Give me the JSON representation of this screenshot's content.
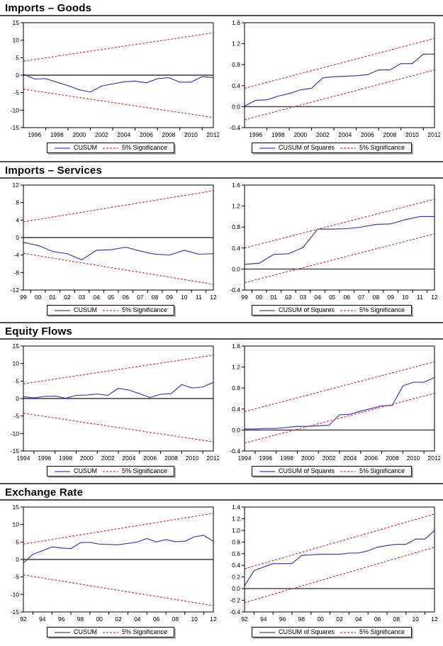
{
  "page": {
    "background": "#ffffff",
    "rule_color": "#4f4f4f",
    "cusum_color": "#3c3cc8",
    "significance_color": "#e53535"
  },
  "sections": [
    {
      "title": "Imports – Goods"
    },
    {
      "title": "Imports – Services"
    },
    {
      "title": "Equity Flows"
    },
    {
      "title": "Exchange Rate"
    }
  ],
  "chart_data": [
    {
      "type": "line",
      "group": "Imports – Goods",
      "panel": "left",
      "xlim": [
        1995,
        2012
      ],
      "ylim": [
        -15,
        15
      ],
      "y_tick_values": [
        -15,
        -10,
        -5,
        0,
        5,
        10,
        15
      ],
      "y_tick_labels": [
        "-15",
        "-10",
        "-5",
        "0",
        "5",
        "10",
        "15"
      ],
      "x_tick_values": [
        1996,
        1998,
        2000,
        2002,
        2004,
        2006,
        2008,
        2010,
        2012
      ],
      "x_tick_labels": [
        "1996",
        "1998",
        "2000",
        "2002",
        "2004",
        "2006",
        "2008",
        "2010",
        "2012"
      ],
      "series": [
        {
          "key": "cusum-line",
          "name": "CUSUM",
          "color": "#3c3cc8",
          "style": "solid",
          "values": [
            0.3,
            -1.1,
            -1.0,
            -2.0,
            -3.0,
            -4.2,
            -4.8,
            -3.1,
            -2.5,
            -1.9,
            -1.7,
            -2.2,
            -1.0,
            -0.7,
            -2.0,
            -2.0,
            -0.4,
            -0.7
          ]
        },
        {
          "key": "significance-upper-line",
          "name": "5% Significance (upper)",
          "color": "#e53535",
          "style": "dashed",
          "values": [
            4.0,
            12.1
          ]
        },
        {
          "key": "significance-lower-line",
          "name": "5% Significance (lower)",
          "color": "#e53535",
          "style": "dashed",
          "values": [
            -4.0,
            -12.1
          ]
        }
      ],
      "legend": [
        {
          "label": "CUSUM",
          "color": "#3c3cc8",
          "style": "solid"
        },
        {
          "label": "5% Significance",
          "color": "#e53535",
          "style": "dashed"
        }
      ]
    },
    {
      "type": "line",
      "group": "Imports – Goods",
      "panel": "right",
      "xlim": [
        1995,
        2012
      ],
      "ylim": [
        -0.4,
        1.6
      ],
      "y_tick_values": [
        -0.4,
        0.0,
        0.4,
        0.8,
        1.2,
        1.6
      ],
      "y_tick_labels": [
        "-0.4",
        "0.0",
        "0.4",
        "0.8",
        "1.2",
        "1.6"
      ],
      "x_tick_values": [
        1996,
        1998,
        2000,
        2002,
        2004,
        2006,
        2008,
        2010,
        2012
      ],
      "x_tick_labels": [
        "1996",
        "1998",
        "2000",
        "2002",
        "2004",
        "2006",
        "2008",
        "2010",
        "2012"
      ],
      "series": [
        {
          "key": "cusum-of-squares-line",
          "name": "CUSUM of Squares",
          "color": "#3c3cc8",
          "style": "solid",
          "values": [
            0.01,
            0.12,
            0.13,
            0.2,
            0.25,
            0.32,
            0.35,
            0.55,
            0.57,
            0.58,
            0.59,
            0.61,
            0.7,
            0.7,
            0.82,
            0.82,
            1.0,
            1.0
          ]
        },
        {
          "key": "significance-upper-line",
          "name": "5% Significance (upper)",
          "color": "#e53535",
          "style": "dashed",
          "values": [
            0.35,
            1.3
          ]
        },
        {
          "key": "significance-lower-line",
          "name": "5% Significance (lower)",
          "color": "#e53535",
          "style": "dashed",
          "values": [
            -0.25,
            0.7
          ]
        }
      ],
      "legend": [
        {
          "label": "CUSUM of Squares",
          "color": "#3c3cc8",
          "style": "solid"
        },
        {
          "label": "5% Significance",
          "color": "#e53535",
          "style": "dashed"
        }
      ]
    },
    {
      "type": "line",
      "group": "Imports – Services",
      "panel": "left",
      "xlim": [
        1999,
        2012
      ],
      "ylim": [
        -12,
        12
      ],
      "y_tick_values": [
        -12,
        -8,
        -4,
        0,
        4,
        8,
        12
      ],
      "y_tick_labels": [
        "-12",
        "-8",
        "-4",
        "0",
        "4",
        "8",
        "12"
      ],
      "x_tick_values": [
        1999,
        2000,
        2001,
        2002,
        2003,
        2004,
        2005,
        2006,
        2007,
        2008,
        2009,
        2010,
        2011,
        2012
      ],
      "x_tick_labels": [
        "99",
        "00",
        "01",
        "02",
        "03",
        "04",
        "05",
        "06",
        "07",
        "08",
        "09",
        "10",
        "11",
        "12"
      ],
      "series": [
        {
          "key": "cusum-line",
          "name": "CUSUM",
          "color": "#3c3cc8",
          "style": "solid",
          "values": [
            -1.1,
            -1.8,
            -3.2,
            -3.7,
            -5.1,
            -2.9,
            -2.8,
            -2.2,
            -3.1,
            -3.8,
            -4.0,
            -2.9,
            -3.8,
            -3.7
          ]
        },
        {
          "key": "significance-upper-line",
          "name": "5% Significance (upper)",
          "color": "#e53535",
          "style": "dashed",
          "values": [
            3.6,
            10.7
          ]
        },
        {
          "key": "significance-lower-line",
          "name": "5% Significance (lower)",
          "color": "#e53535",
          "style": "dashed",
          "values": [
            -3.6,
            -10.7
          ]
        }
      ],
      "legend": [
        {
          "label": "CUSUM",
          "color": "#3c3cc8",
          "style": "solid"
        },
        {
          "label": "5% Significance",
          "color": "#e53535",
          "style": "dashed"
        }
      ]
    },
    {
      "type": "line",
      "group": "Imports – Services",
      "panel": "right",
      "xlim": [
        1999,
        2012
      ],
      "ylim": [
        -0.4,
        1.6
      ],
      "y_tick_values": [
        -0.4,
        0.0,
        0.4,
        0.8,
        1.2,
        1.6
      ],
      "y_tick_labels": [
        "-0.4",
        "0.0",
        "0.4",
        "0.8",
        "1.2",
        "1.6"
      ],
      "x_tick_values": [
        1999,
        2000,
        2001,
        2002,
        2003,
        2004,
        2005,
        2006,
        2007,
        2008,
        2009,
        2010,
        2011,
        2012
      ],
      "x_tick_labels": [
        "99",
        "00",
        "01",
        "02",
        "03",
        "04",
        "05",
        "06",
        "07",
        "08",
        "09",
        "10",
        "11",
        "12"
      ],
      "series": [
        {
          "key": "cusum-of-squares-line",
          "name": "CUSUM of Squares",
          "color": "#3c3cc8",
          "style": "solid",
          "values": [
            0.09,
            0.11,
            0.28,
            0.29,
            0.41,
            0.76,
            0.76,
            0.77,
            0.8,
            0.85,
            0.86,
            0.94,
            1.0,
            1.0
          ]
        },
        {
          "key": "significance-upper-line",
          "name": "5% Significance (upper)",
          "color": "#e53535",
          "style": "dashed",
          "values": [
            0.4,
            1.33
          ]
        },
        {
          "key": "significance-lower-line",
          "name": "5% Significance (lower)",
          "color": "#e53535",
          "style": "dashed",
          "values": [
            -0.26,
            0.67
          ]
        }
      ],
      "legend": [
        {
          "label": "CUSUM of Squares",
          "color": "#3c3cc8",
          "style": "solid"
        },
        {
          "label": "5% Significance",
          "color": "#e53535",
          "style": "dashed"
        }
      ]
    },
    {
      "type": "line",
      "group": "Equity Flows",
      "panel": "left",
      "xlim": [
        1994,
        2012
      ],
      "ylim": [
        -15,
        15
      ],
      "y_tick_values": [
        -15,
        -10,
        -5,
        0,
        5,
        10,
        15
      ],
      "y_tick_labels": [
        "-15",
        "-10",
        "-5",
        "0",
        "5",
        "10",
        "15"
      ],
      "x_tick_values": [
        1994,
        1996,
        1998,
        2000,
        2002,
        2004,
        2006,
        2008,
        2010,
        2012
      ],
      "x_tick_labels": [
        "1994",
        "1996",
        "1998",
        "2000",
        "2002",
        "2004",
        "2006",
        "2008",
        "2010",
        "2012"
      ],
      "series": [
        {
          "key": "cusum-line",
          "name": "CUSUM",
          "color": "#3c3cc8",
          "style": "solid",
          "values": [
            0.5,
            0.2,
            0.6,
            0.7,
            0.1,
            0.9,
            1.0,
            1.3,
            0.9,
            2.9,
            2.4,
            1.4,
            0.3,
            1.2,
            1.4,
            4.0,
            3.0,
            3.3,
            4.6
          ]
        },
        {
          "key": "significance-upper-line",
          "name": "5% Significance (upper)",
          "color": "#e53535",
          "style": "dashed",
          "values": [
            4.2,
            12.4
          ]
        },
        {
          "key": "significance-lower-line",
          "name": "5% Significance (lower)",
          "color": "#e53535",
          "style": "dashed",
          "values": [
            -4.2,
            -12.4
          ]
        }
      ],
      "legend": [
        {
          "label": "CUSUM",
          "color": "#3c3cc8",
          "style": "solid"
        },
        {
          "label": "5% Significance",
          "color": "#e53535",
          "style": "dashed"
        }
      ]
    },
    {
      "type": "line",
      "group": "Equity Flows",
      "panel": "right",
      "xlim": [
        1994,
        2012
      ],
      "ylim": [
        -0.4,
        1.6
      ],
      "y_tick_values": [
        -0.4,
        0.0,
        0.4,
        0.8,
        1.2,
        1.6
      ],
      "y_tick_labels": [
        "-0.4",
        "0.0",
        "0.4",
        "0.8",
        "1.2",
        "1.6"
      ],
      "x_tick_values": [
        1994,
        1996,
        1998,
        2000,
        2002,
        2004,
        2006,
        2008,
        2010,
        2012
      ],
      "x_tick_labels": [
        "1994",
        "1996",
        "1998",
        "2000",
        "2002",
        "2004",
        "2006",
        "2008",
        "2010",
        "2012"
      ],
      "series": [
        {
          "key": "cusum-of-squares-line",
          "name": "CUSUM of Squares",
          "color": "#3c3cc8",
          "style": "solid",
          "values": [
            0.02,
            0.02,
            0.03,
            0.03,
            0.05,
            0.07,
            0.07,
            0.08,
            0.09,
            0.29,
            0.3,
            0.36,
            0.41,
            0.46,
            0.47,
            0.84,
            0.91,
            0.91,
            1.0
          ]
        },
        {
          "key": "significance-upper-line",
          "name": "5% Significance (upper)",
          "color": "#e53535",
          "style": "dashed",
          "values": [
            0.35,
            1.3
          ]
        },
        {
          "key": "significance-lower-line",
          "name": "5% Significance (lower)",
          "color": "#e53535",
          "style": "dashed",
          "values": [
            -0.25,
            0.7
          ]
        }
      ],
      "legend": [
        {
          "label": "CUSUM of Squares",
          "color": "#3c3cc8",
          "style": "solid"
        },
        {
          "label": "5% Significance",
          "color": "#e53535",
          "style": "dashed"
        }
      ]
    },
    {
      "type": "line",
      "group": "Exchange Rate",
      "panel": "left",
      "xlim": [
        1992,
        2012
      ],
      "ylim": [
        -15,
        15
      ],
      "y_tick_values": [
        -15,
        -10,
        -5,
        0,
        5,
        10,
        15
      ],
      "y_tick_labels": [
        "-15",
        "-10",
        "-5",
        "0",
        "5",
        "10",
        "15"
      ],
      "x_tick_values": [
        1992,
        1994,
        1996,
        1998,
        2000,
        2002,
        2004,
        2006,
        2008,
        2010,
        2012
      ],
      "x_tick_labels": [
        "92",
        "94",
        "96",
        "98",
        "00",
        "02",
        "04",
        "06",
        "08",
        "10",
        "12"
      ],
      "series": [
        {
          "key": "cusum-line",
          "name": "CUSUM",
          "color": "#3c3cc8",
          "style": "solid",
          "values": [
            -1.0,
            1.5,
            2.5,
            3.6,
            3.3,
            3.1,
            4.8,
            4.9,
            4.4,
            4.3,
            4.2,
            4.6,
            5.0,
            6.0,
            5.0,
            5.7,
            5.1,
            5.2,
            6.5,
            6.9,
            5.2
          ]
        },
        {
          "key": "significance-upper-line",
          "name": "5% Significance (upper)",
          "color": "#e53535",
          "style": "dashed",
          "values": [
            4.4,
            13.2
          ]
        },
        {
          "key": "significance-lower-line",
          "name": "5% Significance (lower)",
          "color": "#e53535",
          "style": "dashed",
          "values": [
            -4.4,
            -13.2
          ]
        }
      ],
      "legend": [
        {
          "label": "CUSUM",
          "color": "#3c3cc8",
          "style": "solid"
        },
        {
          "label": "5% Significance",
          "color": "#e53535",
          "style": "dashed"
        }
      ]
    },
    {
      "type": "line",
      "group": "Exchange Rate",
      "panel": "right",
      "xlim": [
        1992,
        2012
      ],
      "ylim": [
        -0.4,
        1.4
      ],
      "y_tick_values": [
        -0.4,
        -0.2,
        0.0,
        0.2,
        0.4,
        0.6,
        0.8,
        1.0,
        1.2,
        1.4
      ],
      "y_tick_labels": [
        "-0.4",
        "-0.2",
        "0.0",
        "0.2",
        "0.4",
        "0.6",
        "0.8",
        "1.0",
        "1.2",
        "1.4"
      ],
      "x_tick_values": [
        1992,
        1994,
        1996,
        1998,
        2000,
        2002,
        2004,
        2006,
        2008,
        2010,
        2012
      ],
      "x_tick_labels": [
        "92",
        "94",
        "96",
        "98",
        "00",
        "02",
        "04",
        "06",
        "08",
        "10",
        "12"
      ],
      "series": [
        {
          "key": "cusum-of-squares-line",
          "name": "CUSUM of Squares",
          "color": "#3c3cc8",
          "style": "solid",
          "values": [
            0.05,
            0.31,
            0.37,
            0.43,
            0.43,
            0.43,
            0.57,
            0.58,
            0.59,
            0.59,
            0.59,
            0.61,
            0.61,
            0.65,
            0.71,
            0.74,
            0.76,
            0.76,
            0.85,
            0.85,
            1.0
          ]
        },
        {
          "key": "significance-upper-line",
          "name": "5% Significance (upper)",
          "color": "#e53535",
          "style": "dashed",
          "values": [
            0.34,
            1.28
          ]
        },
        {
          "key": "significance-lower-line",
          "name": "5% Significance (lower)",
          "color": "#e53535",
          "style": "dashed",
          "values": [
            -0.24,
            0.71
          ]
        }
      ],
      "legend": [
        {
          "label": "CUSUM of Squares",
          "color": "#3c3cc8",
          "style": "solid"
        },
        {
          "label": "5% Significance",
          "color": "#e53535",
          "style": "dashed"
        }
      ]
    }
  ]
}
